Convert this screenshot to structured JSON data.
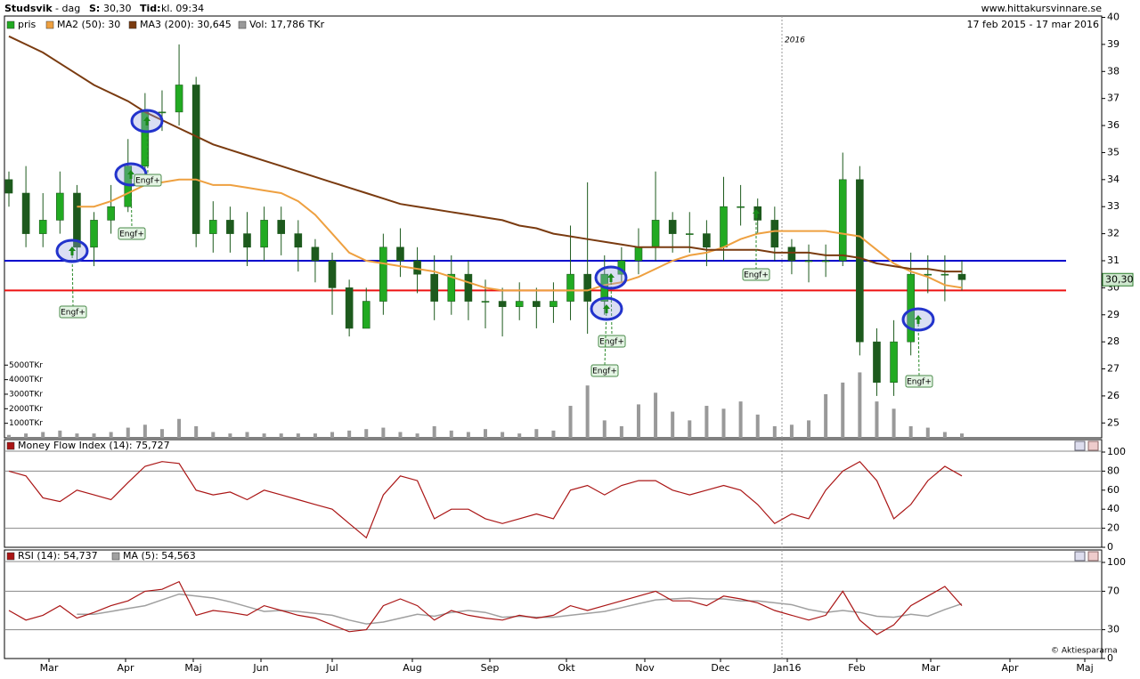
{
  "chart_data": [
    {
      "type": "candlestick",
      "title": "Studsvik",
      "subtitle": "- dag",
      "quote": [
        "S:",
        "30,30",
        "Tid:",
        "kl. 09:34"
      ],
      "source": "www.hittakursvinnare.se",
      "date_range": "17 feb 2015 - 17 mar 2016",
      "year_label": "2016",
      "month_labels": [
        "Mar",
        "Apr",
        "Maj",
        "Jun",
        "Jul",
        "Aug",
        "Sep",
        "Okt",
        "Nov",
        "Dec",
        "Jan16",
        "Feb",
        "Mar",
        "Apr",
        "Maj"
      ],
      "series": [
        {
          "name": "pris",
          "color": "#22aa22",
          "down_color": "#1d5a1d",
          "open": [
            34,
            33.5,
            32,
            32.5,
            33.5,
            31.5,
            32.5,
            33,
            34.5,
            36.5,
            36.5,
            37.5,
            32,
            32.5,
            32,
            31.5,
            32.5,
            32,
            31.5,
            31,
            30,
            28.5,
            29.5,
            31.5,
            31,
            30.5,
            29.5,
            30.5,
            29.5,
            29.5,
            29.3,
            29.5,
            29.3,
            29.5,
            30.5,
            29.5,
            30.5,
            31,
            31.5,
            32.5,
            32,
            32,
            31.5,
            33,
            33,
            32.5,
            31.5,
            31,
            31,
            31,
            34,
            28,
            26.5,
            28,
            30.5,
            30.5,
            30.5
          ],
          "high": [
            34.3,
            34.5,
            33.5,
            34.3,
            33.8,
            32.8,
            33.8,
            35.5,
            37.2,
            37.3,
            39,
            37.8,
            33.2,
            33,
            32.8,
            33,
            33,
            32.5,
            31.8,
            31.3,
            30.3,
            30,
            32,
            32.2,
            31.5,
            31.2,
            31.2,
            31,
            30.3,
            30,
            30.2,
            30,
            30.2,
            32.3,
            33.9,
            31.2,
            31.5,
            32.2,
            34.3,
            32.8,
            32.8,
            32.5,
            34.1,
            33.8,
            33.3,
            33,
            31.8,
            31.6,
            31.6,
            35,
            34.5,
            28.5,
            28.8,
            31.3,
            31.2,
            31.2,
            31
          ],
          "low": [
            33,
            31.5,
            31.5,
            32,
            31,
            30.8,
            32,
            32.8,
            34,
            35.8,
            36,
            31.5,
            31.3,
            31.3,
            30.8,
            31,
            31.2,
            30.6,
            30.2,
            29,
            28.2,
            28.5,
            29,
            30.4,
            29.8,
            28.8,
            29,
            28.8,
            28.5,
            28.2,
            28.8,
            28.5,
            28.7,
            28.8,
            28.3,
            29,
            30.2,
            30.5,
            31,
            31.3,
            31.3,
            30.8,
            31,
            32.3,
            32,
            31,
            30.5,
            30.2,
            30.4,
            30.8,
            27.5,
            26,
            26,
            27.5,
            29.8,
            29.5,
            29.9
          ],
          "close": [
            33.5,
            32,
            32.5,
            33.5,
            31.5,
            32.5,
            33,
            34.5,
            36.5,
            36.5,
            37.5,
            32,
            32.5,
            32,
            31.5,
            32.5,
            32,
            31.5,
            31,
            30,
            28.5,
            29.5,
            31.5,
            31,
            30.5,
            29.5,
            30.5,
            29.5,
            29.5,
            29.3,
            29.5,
            29.3,
            29.5,
            30.5,
            29.5,
            30.5,
            31,
            31.5,
            32.5,
            32,
            32,
            31.5,
            33,
            33,
            32.5,
            31.5,
            31,
            31,
            31,
            34,
            28,
            26.5,
            28,
            30.5,
            30.5,
            30.5,
            30.3
          ],
          "last_label": "30,30"
        },
        {
          "name": "MA2 (50): 30",
          "color": "#eea040",
          "values": [
            null,
            null,
            null,
            null,
            33.0,
            33.0,
            33.2,
            33.5,
            33.8,
            33.9,
            34.0,
            34.0,
            33.8,
            33.8,
            33.7,
            33.6,
            33.5,
            33.2,
            32.7,
            32.0,
            31.3,
            31.0,
            30.9,
            30.8,
            30.7,
            30.6,
            30.4,
            30.2,
            30.0,
            29.9,
            29.9,
            29.9,
            29.9,
            29.9,
            29.9,
            30.1,
            30.2,
            30.4,
            30.7,
            31.0,
            31.2,
            31.3,
            31.5,
            31.8,
            32.0,
            32.1,
            32.1,
            32.1,
            32.1,
            32.0,
            31.9,
            31.4,
            30.9,
            30.6,
            30.4,
            30.1,
            30.0
          ]
        },
        {
          "name": "MA3 (200): 30,645",
          "color": "#7a3b10",
          "values": [
            39.3,
            39.0,
            38.7,
            38.3,
            37.9,
            37.5,
            37.2,
            36.9,
            36.5,
            36.2,
            35.9,
            35.6,
            35.3,
            35.1,
            34.9,
            34.7,
            34.5,
            34.3,
            34.1,
            33.9,
            33.7,
            33.5,
            33.3,
            33.1,
            33.0,
            32.9,
            32.8,
            32.7,
            32.6,
            32.5,
            32.3,
            32.2,
            32.0,
            31.9,
            31.8,
            31.7,
            31.6,
            31.5,
            31.5,
            31.5,
            31.5,
            31.4,
            31.4,
            31.4,
            31.4,
            31.3,
            31.3,
            31.3,
            31.2,
            31.2,
            31.1,
            30.9,
            30.8,
            30.7,
            30.7,
            30.6,
            30.6
          ]
        },
        {
          "name": "Vol: 17,786 TKr",
          "color": "#999999",
          "axis": "y2",
          "values": [
            200,
            300,
            400,
            500,
            300,
            300,
            400,
            700,
            900,
            600,
            1300,
            800,
            400,
            300,
            400,
            300,
            300,
            300,
            300,
            400,
            500,
            600,
            700,
            400,
            300,
            800,
            500,
            400,
            600,
            400,
            300,
            600,
            500,
            2200,
            3600,
            1200,
            800,
            2300,
            3100,
            1800,
            1200,
            2200,
            2000,
            2500,
            1600,
            800,
            900,
            1200,
            3000,
            3800,
            4500,
            2500,
            2000,
            800,
            700,
            400,
            300
          ]
        }
      ],
      "hlines": [
        {
          "value": 31,
          "color": "#0000cc"
        },
        {
          "value": 29.9,
          "color": "#ee1111"
        }
      ],
      "annotations": [
        "Engf+",
        "Engf+",
        "Engf+",
        "Engf+",
        "Engf+",
        "Engf+",
        "Engf+"
      ],
      "ylim": [
        24.45,
        40.05
      ],
      "yticks": [
        25,
        26,
        27,
        28,
        29,
        30,
        31,
        32,
        33,
        34,
        35,
        36,
        37,
        38,
        39,
        40
      ],
      "y2lim": [
        0,
        29000
      ],
      "y2ticks": [
        {
          "value": 1000,
          "label": "1000TKr"
        },
        {
          "value": 2000,
          "label": "2000TKr"
        },
        {
          "value": 3000,
          "label": "3000TKr"
        },
        {
          "value": 4000,
          "label": "4000TKr"
        },
        {
          "value": 5000,
          "label": "5000TKr"
        }
      ]
    },
    {
      "type": "line",
      "series": [
        {
          "name": "Money Flow Index (14): 75,727",
          "color": "#aa1515",
          "values": [
            80,
            75,
            52,
            48,
            60,
            55,
            50,
            68,
            85,
            90,
            88,
            60,
            55,
            58,
            50,
            60,
            55,
            50,
            45,
            40,
            25,
            10,
            55,
            75,
            70,
            30,
            40,
            40,
            30,
            25,
            30,
            35,
            30,
            60,
            65,
            55,
            65,
            70,
            70,
            60,
            55,
            60,
            65,
            60,
            45,
            25,
            35,
            30,
            60,
            80,
            90,
            70,
            30,
            45,
            70,
            85,
            75
          ]
        }
      ],
      "hlines": [
        80,
        20
      ],
      "ylim": [
        0,
        100
      ],
      "yticks": [
        0,
        20,
        40,
        60,
        80,
        100
      ]
    },
    {
      "type": "line",
      "series": [
        {
          "name": "RSI (14): 54,737",
          "color": "#aa1515",
          "values": [
            50,
            40,
            45,
            55,
            42,
            48,
            55,
            60,
            70,
            72,
            80,
            45,
            50,
            48,
            45,
            55,
            50,
            45,
            42,
            35,
            28,
            30,
            55,
            62,
            55,
            40,
            50,
            45,
            42,
            40,
            45,
            42,
            45,
            55,
            50,
            55,
            60,
            65,
            70,
            60,
            60,
            55,
            65,
            62,
            58,
            50,
            45,
            40,
            45,
            70,
            40,
            25,
            35,
            55,
            65,
            75,
            55
          ]
        },
        {
          "name": "MA (5): 54,563",
          "color": "#a0a0a0",
          "values": [
            null,
            null,
            null,
            null,
            46,
            46,
            49,
            52,
            55,
            61,
            67,
            65,
            63,
            59,
            54,
            49,
            50,
            49,
            47,
            45,
            40,
            36,
            38,
            42,
            46,
            44,
            48,
            50,
            48,
            43,
            44,
            43,
            43,
            45,
            47,
            49,
            53,
            57,
            61,
            62,
            63,
            62,
            62,
            60,
            60,
            58,
            56,
            51,
            48,
            50,
            48,
            44,
            43,
            46,
            44,
            51,
            57
          ]
        }
      ],
      "hlines": [
        70,
        30
      ],
      "ylim": [
        0,
        100
      ],
      "yticks": [
        0,
        30,
        70,
        100
      ],
      "credit": "© Aktiespararna"
    }
  ]
}
